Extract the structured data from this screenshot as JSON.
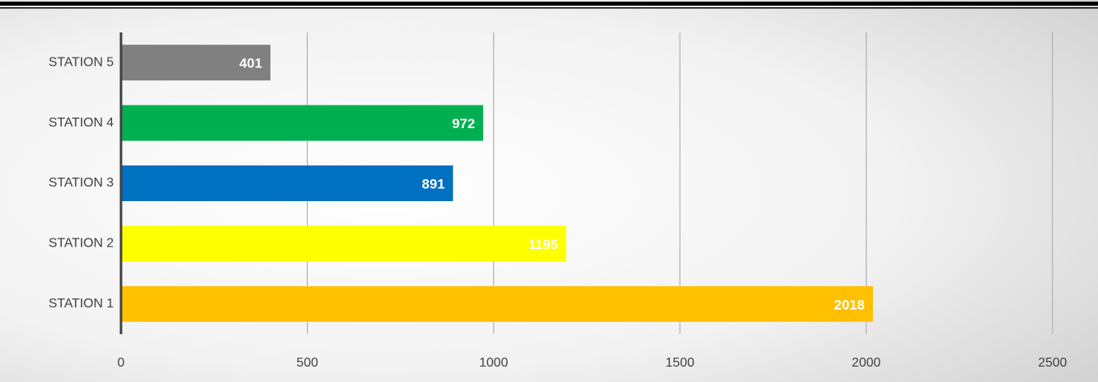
{
  "chart_data": {
    "type": "bar",
    "orientation": "horizontal",
    "categories": [
      "STATION 1",
      "STATION 2",
      "STATION 3",
      "STATION 4",
      "STATION 5"
    ],
    "values": [
      2018,
      1195,
      891,
      972,
      401
    ],
    "colors": [
      "#ffc000",
      "#ffff00",
      "#0070c0",
      "#00b050",
      "#808080"
    ],
    "xlim": [
      0,
      2500
    ],
    "xticks": [
      0,
      500,
      1000,
      1500,
      2000,
      2500
    ],
    "grid": true
  }
}
